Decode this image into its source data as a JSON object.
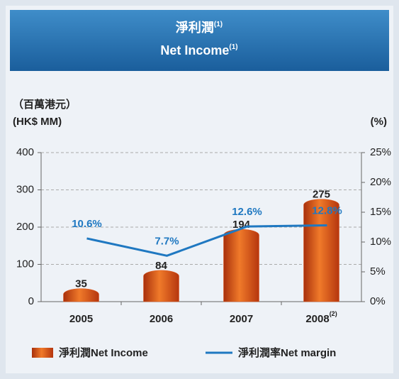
{
  "chart_data": {
    "type": "bar_line",
    "title": {
      "zh": "淨利潤",
      "en": "Net Income",
      "footnote": "(1)"
    },
    "y_label": {
      "zh": "（百萬港元）",
      "en": "(HK$ MM)"
    },
    "y2_label": "(%)",
    "categories": [
      "2005",
      "2006",
      "2007",
      "2008"
    ],
    "category_footnotes": [
      null,
      null,
      null,
      "(2)"
    ],
    "series": [
      {
        "name": "淨利潤Net Income",
        "type": "bar",
        "color": "#e0561c",
        "values": [
          35,
          84,
          194,
          275
        ]
      },
      {
        "name": "淨利潤率Net margin",
        "type": "line",
        "axis": "y2",
        "color": "#1f78c1",
        "values": [
          10.6,
          7.7,
          12.6,
          12.8
        ],
        "value_labels": [
          "10.6%",
          "7.7%",
          "12.6%",
          "12.8%"
        ]
      }
    ],
    "ylim": [
      0,
      400
    ],
    "yticks": [
      0,
      100,
      200,
      300,
      400
    ],
    "y2lim": [
      0,
      25
    ],
    "y2ticks": [
      {
        "value": 0,
        "label": "0%"
      },
      {
        "value": 5,
        "label": "5%"
      },
      {
        "value": 10,
        "label": "10%"
      },
      {
        "value": 15,
        "label": "15%"
      },
      {
        "value": 20,
        "label": "20%"
      },
      {
        "value": 25,
        "label": "25%"
      }
    ],
    "grid": true
  }
}
